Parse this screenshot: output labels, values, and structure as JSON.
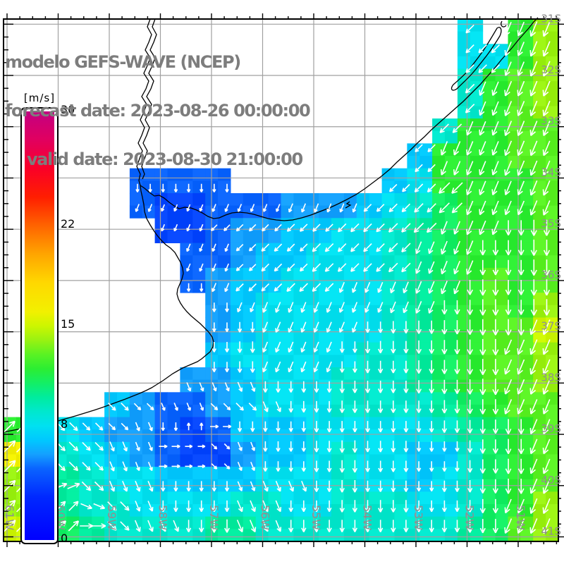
{
  "title": {
    "line1": "modelo GEFS-WAVE (NCEP)",
    "line2": "forecast date: 2023-08-26 00:00:00",
    "line3": "valid date: 2023-08-30 21:00:00"
  },
  "colorbar": {
    "unit": "[m/s]",
    "min": 0,
    "max": 30,
    "tick_values": [
      30,
      22,
      15,
      8,
      0
    ],
    "gradient_stops": [
      [
        0,
        "#0000ff"
      ],
      [
        3,
        "#0028ff"
      ],
      [
        5,
        "#0a64ff"
      ],
      [
        6,
        "#14a0ff"
      ],
      [
        7,
        "#00c8ff"
      ],
      [
        8,
        "#00e1f0"
      ],
      [
        9,
        "#00e8cd"
      ],
      [
        10,
        "#00ec9e"
      ],
      [
        11,
        "#14ef64"
      ],
      [
        12,
        "#2cee32"
      ],
      [
        13,
        "#5af223"
      ],
      [
        14,
        "#9af211"
      ],
      [
        15,
        "#cdf600"
      ],
      [
        16,
        "#f2f000"
      ],
      [
        18,
        "#ffd800"
      ],
      [
        20,
        "#ffa500"
      ],
      [
        22,
        "#ff6400"
      ],
      [
        24,
        "#ff1e00"
      ],
      [
        26,
        "#fa0028"
      ],
      [
        28,
        "#e1005f"
      ],
      [
        30,
        "#c30082"
      ]
    ]
  },
  "axes": {
    "lon_labels": [
      "61W",
      "60W",
      "59W",
      "58W",
      "57W",
      "56W",
      "55W",
      "54W",
      "53W",
      "52W",
      "51W"
    ],
    "lat_labels": [
      "31S",
      "32S",
      "33S",
      "34S",
      "35S",
      "36S",
      "37S",
      "38S",
      "39S",
      "40S",
      "41S"
    ]
  },
  "colors": {
    "title_text": "#7d7d7d",
    "grid_line": "#a0a0a0",
    "axis_label": "#8f8f8f",
    "coastline": "#000000",
    "frame": "#000000",
    "arrow": "#ffffff",
    "land": "#ffffff"
  },
  "chart_data": {
    "type": "heatmap",
    "title": "modelo GEFS-WAVE (NCEP)",
    "field": "wind speed (m/s) with wind-direction vector overlay",
    "vector_overlay": true,
    "xlabel": "longitude",
    "ylabel": "latitude",
    "lon_range": [
      "61W",
      "50W"
    ],
    "lat_range": [
      "31S",
      "41S"
    ],
    "colorbar_ticks": [
      30,
      22,
      15,
      8,
      0
    ],
    "grid_cols": 22,
    "grid_rows": 21,
    "speed_encoding": "one char per 0.5 deg cell, west->east, north->south; 0-9 = m/s, a-g = 10-16 m/s, '.' = land",
    "dir_encoding": "16-wind compass sector arrow points toward: 0=N,2=NE,4=E,6=SE,8=S,a=SW,c=W,e=NW, '.'=land",
    "speed": [
      "..................8.ce",
      "..................88ce",
      "..................9cde",
      "..................9cde",
      ".................9ccdd",
      "................7cccdd",
      ".....5555......78ccccd",
      ".....544555666789bcccd",
      "......4456677889abcccd",
      ".......556778889abcccd",
      ".......567788889abcdcd",
      "........67888889abcdce",
      "........67888889abcddf",
      "........78888899abcdde",
      ".......667888999abcdde",
      "....7655678889999abcdd",
      "c98766545777888889abcd",
      "gc98765446778988779bcd",
      "eca9887777888988789bcd",
      "eca9988889988999889bce",
      "fdba9999aa99999999abde"
    ],
    "dir16": [
      "..................a.99",
      "..................aa99",
      "..................a999",
      "..................a999",
      ".................a9999",
      "................a99999",
      ".....8888......aaa9999",
      ".....999999999aaaa9999",
      "......99aaaaaaaaa99988",
      ".......99aaaaaaa999888",
      ".......89aaaa999998888",
      "........89999999988888",
      "........88999988888889",
      "........88999888888899",
      ".......777888888888899",
      "....667766788888888899",
      "2466678048888888888889",
      "2266774467888888888889",
      "2236778887778888888889",
      "2225678887788888888899",
      "2224677887788888888899"
    ]
  }
}
